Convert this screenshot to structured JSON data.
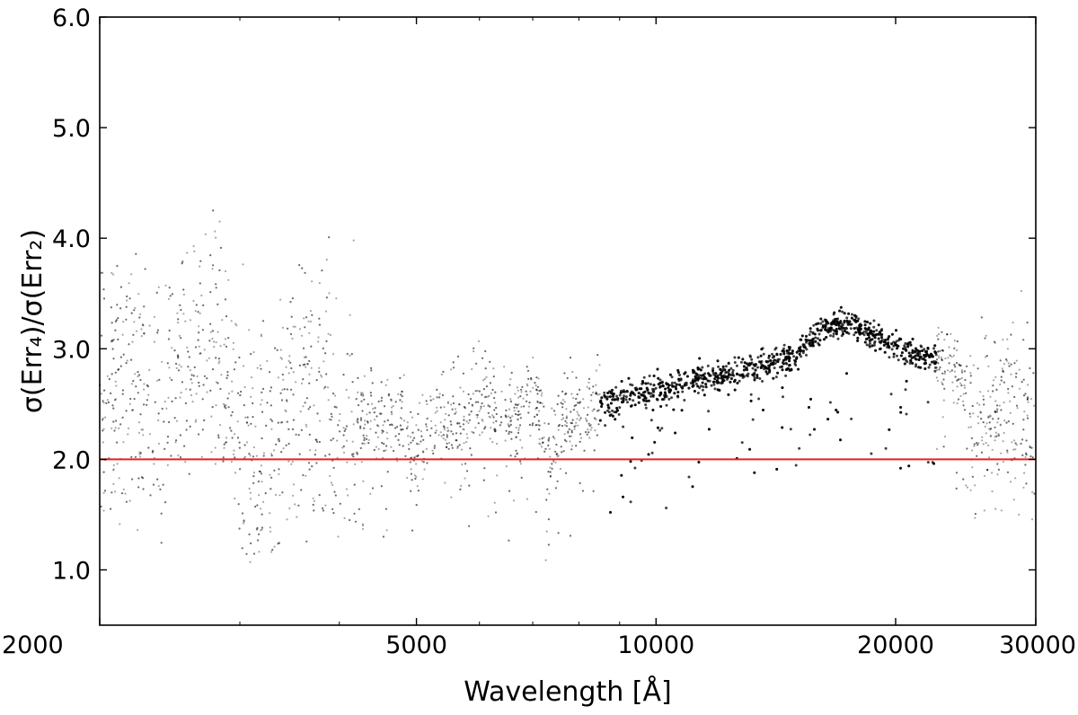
{
  "chart_data": {
    "type": "scatter",
    "title": "",
    "xlabel": "Wavelength [Å]",
    "ylabel": "σ(Err₄)/σ(Err₂)",
    "x_scale": "log",
    "xlim": [
      2000,
      30000
    ],
    "ylim": [
      0.5,
      6.0
    ],
    "x_ticks": [
      2000,
      5000,
      10000,
      20000,
      30000
    ],
    "x_tick_labels": [
      "2000",
      "5000",
      "10000",
      "20000",
      "30000"
    ],
    "y_ticks": [
      1.0,
      2.0,
      3.0,
      4.0,
      5.0,
      6.0
    ],
    "y_tick_labels": [
      "1.0",
      "2.0",
      "3.0",
      "4.0",
      "5.0",
      "6.0"
    ],
    "grid": false,
    "legend": "none",
    "colors": {
      "points": "#000000",
      "reference_line": "#e8201e"
    },
    "reference_line": {
      "y": 2.0
    },
    "series": [
      {
        "profile_x": [
          2000,
          2200,
          2400,
          2600,
          2800,
          3000,
          3200,
          3500,
          3800,
          4000,
          4200,
          4500,
          4800,
          5000,
          5200,
          5500,
          5800,
          6000,
          6300,
          6600,
          7000,
          7300,
          7600,
          8000,
          9000,
          10000,
          11000,
          12000,
          13000,
          14000,
          15000,
          16000,
          17000,
          18000,
          19000,
          20000,
          21000,
          22000,
          23000,
          24000,
          25000,
          26000,
          27000,
          28000,
          29000,
          30000
        ],
        "profile_y": [
          2.7,
          2.8,
          2.6,
          3.0,
          3.1,
          2.3,
          2.0,
          2.6,
          2.7,
          2.3,
          2.4,
          2.4,
          2.35,
          1.9,
          2.4,
          2.4,
          2.35,
          2.6,
          2.45,
          2.3,
          2.65,
          2.0,
          2.3,
          2.45,
          2.55,
          2.62,
          2.7,
          2.76,
          2.82,
          2.88,
          2.95,
          3.15,
          3.25,
          3.17,
          3.09,
          3.02,
          2.96,
          2.92,
          2.88,
          2.8,
          2.4,
          2.45,
          2.5,
          2.5,
          2.45,
          2.4
        ]
      }
    ]
  }
}
